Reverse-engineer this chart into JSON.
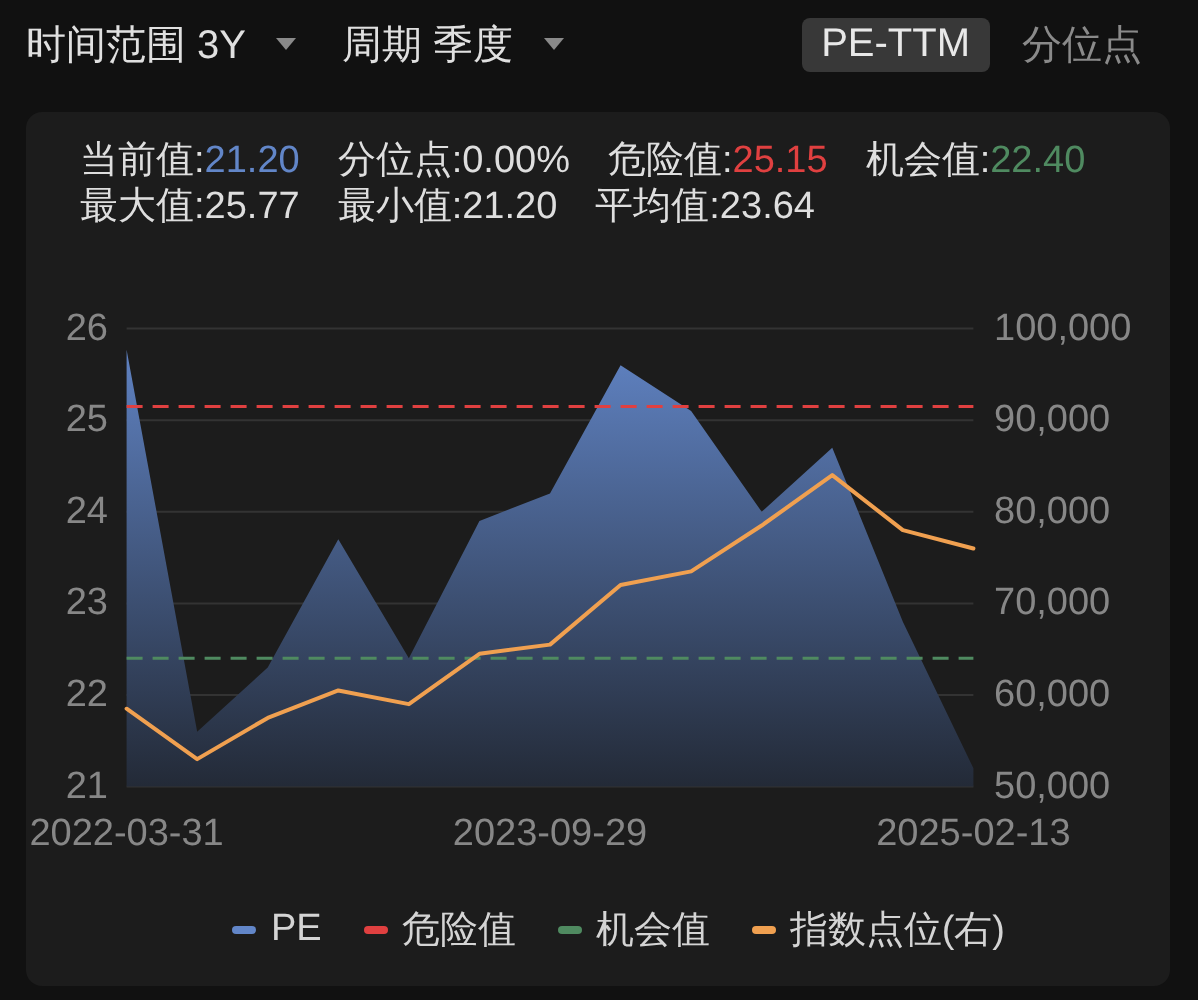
{
  "chart_data": {
    "type": "area",
    "categories": [
      "2022-03-31",
      null,
      null,
      null,
      null,
      null,
      "2023-09-29",
      null,
      null,
      null,
      null,
      null,
      "2025-02-13"
    ],
    "series": [
      {
        "name": "PE",
        "color": "#6286c8",
        "values": [
          25.77,
          21.6,
          22.3,
          23.7,
          22.4,
          23.9,
          24.2,
          25.6,
          25.1,
          24.0,
          24.7,
          22.8,
          21.2
        ]
      },
      {
        "name": "指数点位(右)",
        "type": "line",
        "axis": "y2",
        "color": "#f0a050",
        "values": [
          58500,
          53000,
          57500,
          60500,
          59000,
          64500,
          65500,
          72000,
          73500,
          78500,
          84000,
          78000,
          76000
        ]
      }
    ],
    "ylim": [
      21,
      26
    ],
    "yticks": [
      21,
      22,
      23,
      24,
      25,
      26
    ],
    "y2lim": [
      50000,
      100000
    ],
    "y2ticks": [
      {
        "value": 50000,
        "label": "50,000"
      },
      {
        "value": 60000,
        "label": "60,000"
      },
      {
        "value": 70000,
        "label": "70,000"
      },
      {
        "value": 80000,
        "label": "80,000"
      },
      {
        "value": 90000,
        "label": "90,000"
      },
      {
        "value": 100000,
        "label": "100,000"
      }
    ],
    "ref_lines": [
      {
        "axis": "y",
        "value": 25.15,
        "label": "危险值",
        "color": "#e04040",
        "line_style": "dashed"
      },
      {
        "axis": "y",
        "value": 22.4,
        "label": "机会值",
        "color": "#4f8a60",
        "line_style": "dashed"
      }
    ],
    "grid": "y",
    "legend": "bottom",
    "annotations": [
      "时间范围 3Y",
      "周期 季度",
      "PE-TTM",
      "分位点",
      "当前值:21.20",
      "分位点:0.00%",
      "危险值:25.15",
      "机会值:22.40",
      "最大值:25.77",
      "最小值:21.20",
      "平均值:23.64"
    ]
  }
}
